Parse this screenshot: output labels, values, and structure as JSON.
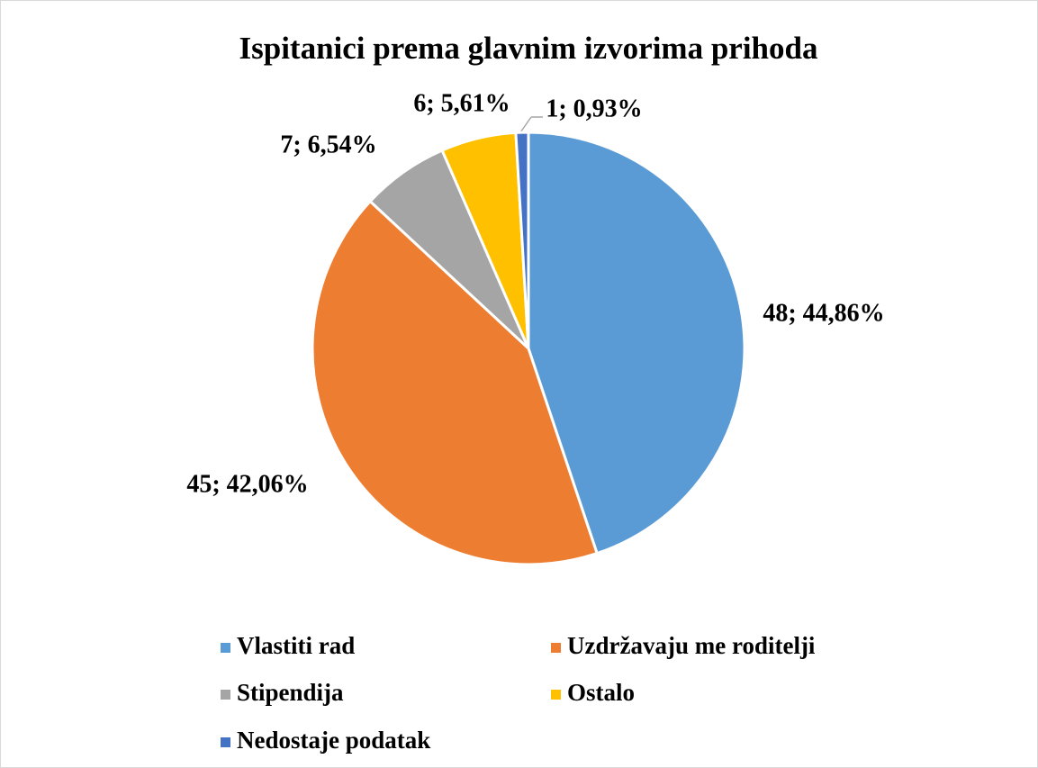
{
  "chart_data": {
    "type": "pie",
    "title": "Ispitanici prema glavnim izvorima prihoda",
    "categories": [
      "Vlastiti rad",
      "Uzdržavaju me roditelji",
      "Stipendija",
      "Ostalo",
      "Nedostaje podatak"
    ],
    "values": [
      48,
      45,
      7,
      6,
      1
    ],
    "value_labels": [
      "48; 44,86%",
      "45; 42,06%",
      "7; 6,54%",
      "6; 5,61%",
      "1; 0,93%"
    ],
    "colors": [
      "#5b9bd5",
      "#ed7d31",
      "#a5a5a5",
      "#ffc000",
      "#4472c4"
    ],
    "legend": "bottom"
  }
}
